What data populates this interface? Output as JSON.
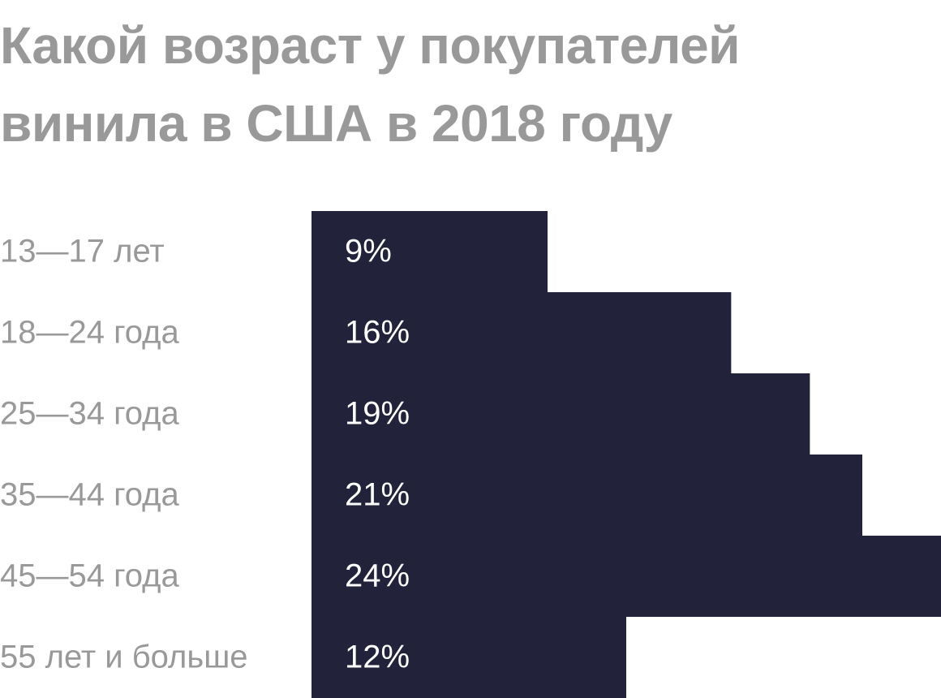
{
  "chart_data": {
    "type": "bar",
    "orientation": "horizontal",
    "title": "Какой возраст у покупателей винила в США в 2018 году",
    "categories": [
      "13—17 лет",
      "18—24 года",
      "25—34 года",
      "35—44 года",
      "45—54 года",
      "55 лет и больше"
    ],
    "values": [
      9,
      16,
      19,
      21,
      24,
      12
    ],
    "value_labels": [
      "9%",
      "16%",
      "19%",
      "21%",
      "24%",
      "12%"
    ],
    "color": "#22223a",
    "xlim": [
      0,
      24
    ]
  }
}
